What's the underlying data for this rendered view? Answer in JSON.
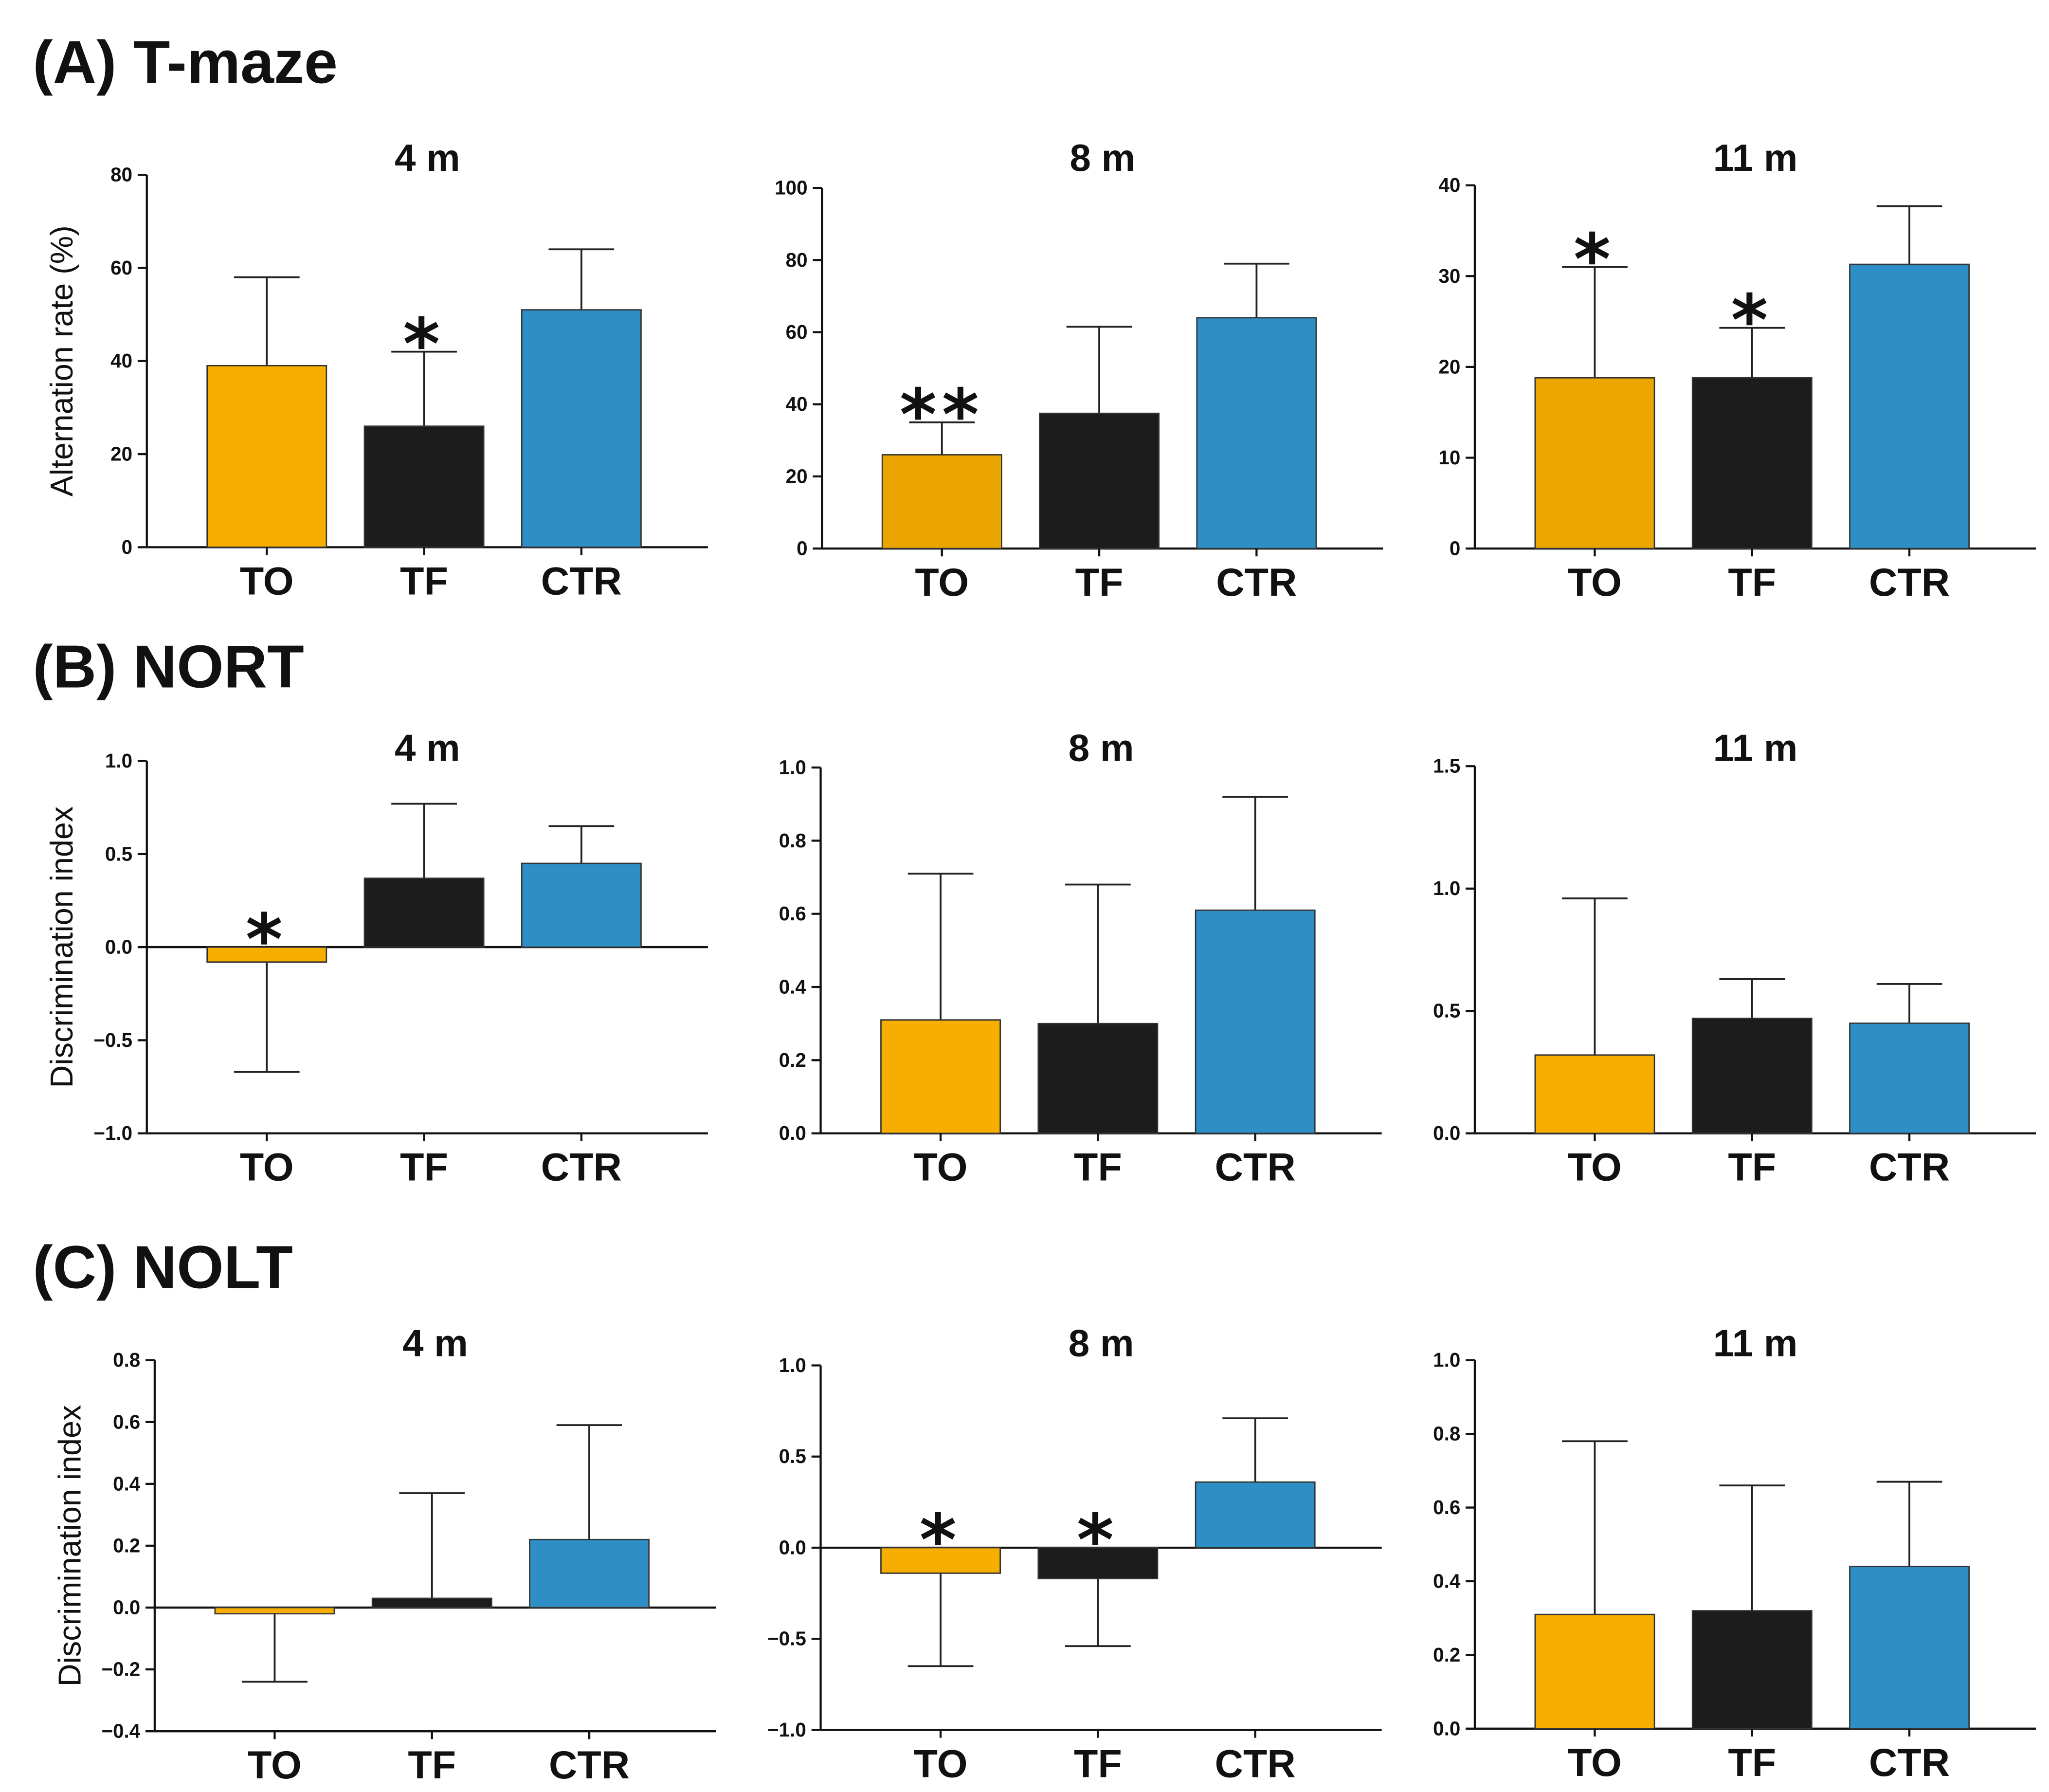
{
  "sections": [
    {
      "label": "(A) T-maze"
    },
    {
      "label": "(B) NORT"
    },
    {
      "label": "(C) NOLT"
    }
  ],
  "chart_data": [
    {
      "type": "bar",
      "section_index": 0,
      "title": "4 m",
      "ylabel": "Alternation rate (%)",
      "categories": [
        "TO",
        "TF",
        "CTR"
      ],
      "values": [
        39,
        26,
        51
      ],
      "errors": [
        19,
        16,
        13
      ],
      "ylim": [
        0,
        80
      ],
      "yticks": [
        0,
        20,
        40,
        60,
        80
      ],
      "yticklabels": [
        "0",
        "20",
        "40",
        "60",
        "80"
      ],
      "colors": [
        "#F7AE00",
        "#1C1C1C",
        "#2E8FC6"
      ],
      "annotations": [
        {
          "category_index": 1,
          "label": "*"
        }
      ]
    },
    {
      "type": "bar",
      "section_index": 0,
      "title": "8 m",
      "categories": [
        "TO",
        "TF",
        "CTR"
      ],
      "values": [
        26,
        37.5,
        64
      ],
      "errors": [
        9,
        24,
        15
      ],
      "ylim": [
        0,
        100
      ],
      "yticks": [
        0,
        20,
        40,
        60,
        80,
        100
      ],
      "yticklabels": [
        "0",
        "20",
        "40",
        "60",
        "80",
        "100"
      ],
      "colors": [
        "#E9A400",
        "#1C1C1C",
        "#2E8FC6"
      ],
      "annotations": [
        {
          "category_index": 0,
          "label": "**"
        }
      ]
    },
    {
      "type": "bar",
      "section_index": 0,
      "title": "11 m",
      "categories": [
        "TO",
        "TF",
        "CTR"
      ],
      "values": [
        18.8,
        18.8,
        31.3
      ],
      "errors": [
        12.2,
        5.5,
        6.4
      ],
      "ylim": [
        0,
        40
      ],
      "yticks": [
        0,
        10,
        20,
        30,
        40
      ],
      "yticklabels": [
        "0",
        "10",
        "20",
        "30",
        "40"
      ],
      "colors": [
        "#EBA600",
        "#1C1C1C",
        "#2E8FC6"
      ],
      "annotations": [
        {
          "category_index": 0,
          "label": "*"
        },
        {
          "category_index": 1,
          "label": "*"
        }
      ]
    },
    {
      "type": "bar",
      "section_index": 1,
      "title": "4 m",
      "ylabel": "Discrimination index",
      "categories": [
        "TO",
        "TF",
        "CTR"
      ],
      "values": [
        -0.08,
        0.37,
        0.45
      ],
      "errors": [
        0.59,
        0.4,
        0.2
      ],
      "ylim": [
        -1,
        1
      ],
      "yticks": [
        -1,
        -0.5,
        0,
        0.5,
        1
      ],
      "yticklabels": [
        "−1.0",
        "−0.5",
        "0.0",
        "0.5",
        "1.0"
      ],
      "colors": [
        "#F7AE00",
        "#1C1C1C",
        "#2E8FC6"
      ],
      "annotations": [
        {
          "category_index": 0,
          "label": "*"
        }
      ]
    },
    {
      "type": "bar",
      "section_index": 1,
      "title": "8 m",
      "categories": [
        "TO",
        "TF",
        "CTR"
      ],
      "values": [
        0.31,
        0.3,
        0.61
      ],
      "errors": [
        0.4,
        0.38,
        0.31
      ],
      "ylim": [
        0,
        1
      ],
      "yticks": [
        0,
        0.2,
        0.4,
        0.6,
        0.8,
        1
      ],
      "yticklabels": [
        "0.0",
        "0.2",
        "0.4",
        "0.6",
        "0.8",
        "1.0"
      ],
      "colors": [
        "#F7AE00",
        "#1C1C1C",
        "#2E8FC6"
      ],
      "annotations": []
    },
    {
      "type": "bar",
      "section_index": 1,
      "title": "11 m",
      "categories": [
        "TO",
        "TF",
        "CTR"
      ],
      "values": [
        0.32,
        0.47,
        0.45
      ],
      "errors": [
        0.64,
        0.16,
        0.16
      ],
      "ylim": [
        0,
        1.5
      ],
      "yticks": [
        0,
        0.5,
        1,
        1.5
      ],
      "yticklabels": [
        "0.0",
        "0.5",
        "1.0",
        "1.5"
      ],
      "colors": [
        "#F7AE00",
        "#1C1C1C",
        "#2E8FC6"
      ],
      "annotations": []
    },
    {
      "type": "bar",
      "section_index": 2,
      "title": "4 m",
      "ylabel": "Discrimination index",
      "categories": [
        "TO",
        "TF",
        "CTR"
      ],
      "values": [
        -0.02,
        0.03,
        0.22
      ],
      "errors": [
        0.22,
        0.34,
        0.37
      ],
      "ylim": [
        -0.4,
        0.8
      ],
      "yticks": [
        -0.4,
        -0.2,
        0,
        0.2,
        0.4,
        0.6,
        0.8
      ],
      "yticklabels": [
        "−0.4",
        "−0.2",
        "0.0",
        "0.2",
        "0.4",
        "0.6",
        "0.8"
      ],
      "colors": [
        "#F7AE00",
        "#1C1C1C",
        "#2E8FC6"
      ],
      "annotations": []
    },
    {
      "type": "bar",
      "section_index": 2,
      "title": "8 m",
      "categories": [
        "TO",
        "TF",
        "CTR"
      ],
      "values": [
        -0.14,
        -0.17,
        0.36
      ],
      "errors": [
        0.51,
        0.37,
        0.35
      ],
      "ylim": [
        -1,
        1
      ],
      "yticks": [
        -1,
        -0.5,
        0,
        0.5,
        1
      ],
      "yticklabels": [
        "−1.0",
        "−0.5",
        "0.0",
        "0.5",
        "1.0"
      ],
      "colors": [
        "#F7AE00",
        "#1C1C1C",
        "#2E8FC6"
      ],
      "annotations": [
        {
          "category_index": 0,
          "label": "*"
        },
        {
          "category_index": 1,
          "label": "*"
        }
      ]
    },
    {
      "type": "bar",
      "section_index": 2,
      "title": "11 m",
      "categories": [
        "TO",
        "TF",
        "CTR"
      ],
      "values": [
        0.31,
        0.32,
        0.44
      ],
      "errors": [
        0.47,
        0.34,
        0.23
      ],
      "ylim": [
        0,
        1
      ],
      "yticks": [
        0,
        0.2,
        0.4,
        0.6,
        0.8,
        1
      ],
      "yticklabels": [
        "0.0",
        "0.2",
        "0.4",
        "0.6",
        "0.8",
        "1.0"
      ],
      "colors": [
        "#F7AE00",
        "#1C1C1C",
        "#2E8FC6"
      ],
      "annotations": []
    }
  ]
}
